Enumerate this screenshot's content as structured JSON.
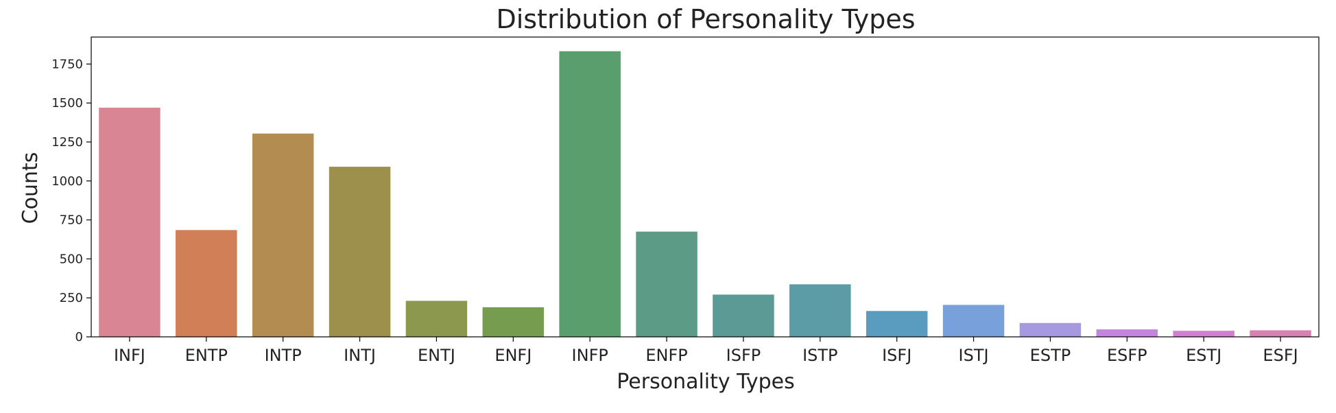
{
  "chart_data": {
    "type": "bar",
    "title": "Distribution of Personality Types",
    "xlabel": "Personality Types",
    "ylabel": "Counts",
    "categories": [
      "INFJ",
      "ENTP",
      "INTP",
      "INTJ",
      "ENTJ",
      "ENFJ",
      "INFP",
      "ENFP",
      "ISFP",
      "ISTP",
      "ISFJ",
      "ISTJ",
      "ESTP",
      "ESFP",
      "ESTJ",
      "ESFJ"
    ],
    "values": [
      1470,
      685,
      1304,
      1091,
      231,
      190,
      1832,
      675,
      271,
      337,
      166,
      205,
      89,
      48,
      39,
      42
    ],
    "colors": [
      "#d98594",
      "#d17f57",
      "#b38c52",
      "#9d8f4c",
      "#8d984f",
      "#759c4f",
      "#5a9e6d",
      "#5c9b86",
      "#5b9a95",
      "#5b9ca6",
      "#5a9cc0",
      "#78a1dc",
      "#a799e0",
      "#c384e0",
      "#d27ed1",
      "#d881b1"
    ],
    "yticks": [
      0,
      250,
      500,
      750,
      1000,
      1250,
      1500,
      1750
    ],
    "ylim": [
      0,
      1923
    ],
    "grid": false
  }
}
